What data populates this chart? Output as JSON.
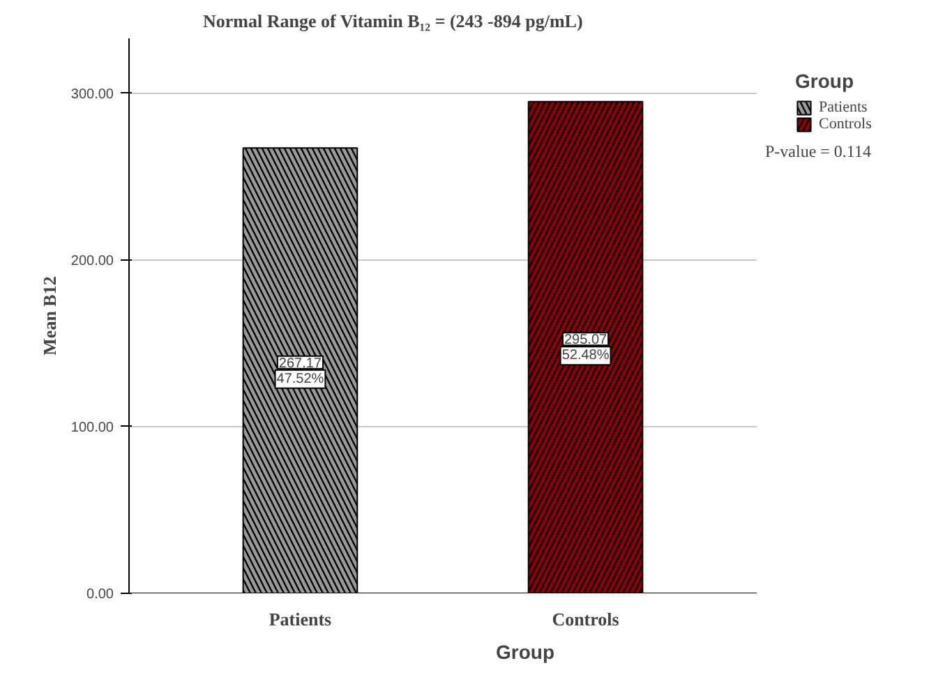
{
  "chart_data": {
    "type": "bar",
    "title": "Normal Range of Vitamin B₁₂ = (243 -894 pg/mL)",
    "xlabel": "Group",
    "ylabel": "Mean B12",
    "legend_title": "Group",
    "categories": [
      "Patients",
      "Controls"
    ],
    "series": [
      {
        "name": "Patients",
        "color": "#9a9a9a",
        "values": [
          267.17,
          null
        ],
        "value_labels": [
          "267.17\n47.52%",
          null
        ]
      },
      {
        "name": "Controls",
        "color": "#8b0000",
        "values": [
          null,
          295.07
        ],
        "value_labels": [
          null,
          "295.07\n52.48%"
        ]
      }
    ],
    "ylim": [
      0,
      333
    ],
    "yticks": [
      {
        "value": 0,
        "label": "0.00"
      },
      {
        "value": 100,
        "label": "100.00"
      },
      {
        "value": 200,
        "label": "200.00"
      },
      {
        "value": 300,
        "label": "300.00"
      }
    ],
    "grid": "y",
    "legend": "top right",
    "annotations": [
      "P-value = 0.114"
    ]
  }
}
